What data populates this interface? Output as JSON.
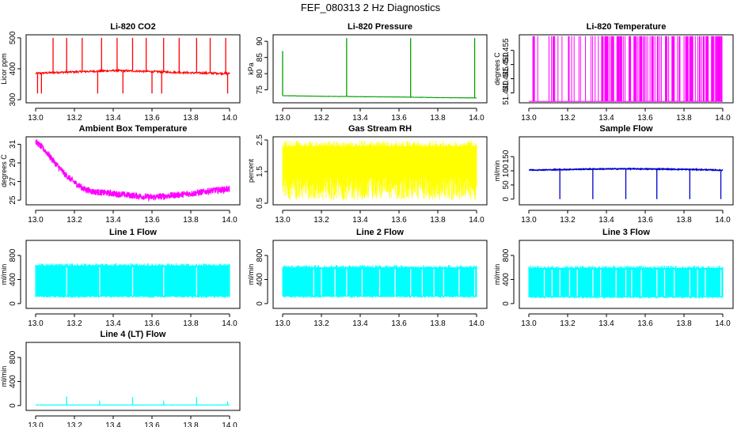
{
  "figure_title": "FEF_080313  2 Hz Diagnostics",
  "chart_data": [
    {
      "id": "co2",
      "type": "line",
      "title": "Li-820 CO2",
      "ylabel": "Licor ppm",
      "color": "#ff0000",
      "xlim": [
        13.0,
        14.0
      ],
      "ylim": [
        290,
        510
      ],
      "yticks": [
        "300",
        "400",
        "500"
      ],
      "ytick_values": [
        300,
        400,
        500
      ],
      "xticks": [
        "13.0",
        "13.2",
        "13.4",
        "13.6",
        "13.8",
        "14.0"
      ],
      "base_points": [
        [
          13.0,
          385
        ],
        [
          13.1,
          388
        ],
        [
          13.2,
          390
        ],
        [
          13.3,
          392
        ],
        [
          13.4,
          394
        ],
        [
          13.5,
          393
        ],
        [
          13.6,
          391
        ],
        [
          13.7,
          389
        ],
        [
          13.8,
          387
        ],
        [
          13.9,
          386
        ],
        [
          13.99,
          385
        ]
      ],
      "spikes_up": [
        13.09,
        13.16,
        13.24,
        13.34,
        13.42,
        13.5,
        13.57,
        13.66,
        13.74,
        13.83,
        13.9,
        13.98
      ],
      "spike_up_value": 500,
      "spikes_down": [
        13.01,
        13.03,
        13.32,
        13.45,
        13.6,
        13.65,
        13.99
      ],
      "spike_down_value": 320
    },
    {
      "id": "pressure",
      "type": "line",
      "title": "Li-820 Pressure",
      "ylabel": "kPa",
      "color": "#00a000",
      "xlim": [
        13.0,
        14.0
      ],
      "ylim": [
        71,
        92
      ],
      "yticks": [
        "75",
        "80",
        "85",
        "90"
      ],
      "ytick_values": [
        75,
        80,
        85,
        90
      ],
      "xticks": [
        "13.0",
        "13.2",
        "13.4",
        "13.6",
        "13.8",
        "14.0"
      ],
      "base_points": [
        [
          13.0,
          73.2
        ],
        [
          13.2,
          73.0
        ],
        [
          13.4,
          72.9
        ],
        [
          13.6,
          72.8
        ],
        [
          13.8,
          72.6
        ],
        [
          14.0,
          72.5
        ]
      ],
      "spikes_up": [
        13.0,
        13.33,
        13.66,
        13.99
      ],
      "spike_up_values": [
        87,
        91,
        91,
        91
      ]
    },
    {
      "id": "temperature",
      "type": "line",
      "title": "Li-820 Temperature",
      "ylabel": "degrees C",
      "color": "#ff00ff",
      "xlim": [
        13.0,
        14.0
      ],
      "ylim": [
        51.4365,
        51.4605
      ],
      "yticks": [
        "51.440",
        "51.445",
        "51.450",
        "51.455"
      ],
      "ytick_values": [
        51.44,
        51.445,
        51.45,
        51.455
      ],
      "xticks": [
        "13.0",
        "13.2",
        "13.4",
        "13.6",
        "13.8",
        "14.0"
      ],
      "base_value": 51.437,
      "high_value": 51.46
    },
    {
      "id": "ambient",
      "type": "line",
      "title": "Ambient Box Temperature",
      "ylabel": "degrees C",
      "color": "#ff00ff",
      "xlim": [
        13.0,
        14.0
      ],
      "ylim": [
        24.5,
        31.8
      ],
      "yticks": [
        "25",
        "27",
        "29",
        "31"
      ],
      "ytick_values": [
        25,
        27,
        29,
        31
      ],
      "xticks": [
        "13.0",
        "13.2",
        "13.4",
        "13.6",
        "13.8",
        "14.0"
      ],
      "base_points": [
        [
          13.0,
          31.3
        ],
        [
          13.05,
          30.3
        ],
        [
          13.1,
          29.0
        ],
        [
          13.15,
          27.8
        ],
        [
          13.2,
          26.9
        ],
        [
          13.25,
          26.2
        ],
        [
          13.3,
          25.9
        ],
        [
          13.4,
          25.7
        ],
        [
          13.5,
          25.5
        ],
        [
          13.6,
          25.3
        ],
        [
          13.7,
          25.5
        ],
        [
          13.8,
          25.7
        ],
        [
          13.9,
          26.0
        ],
        [
          14.0,
          26.2
        ]
      ],
      "noise": 0.35
    },
    {
      "id": "rh",
      "type": "area",
      "title": "Gas Stream RH",
      "ylabel": "percent",
      "color": "#ffff00",
      "xlim": [
        13.0,
        14.0
      ],
      "ylim": [
        0.45,
        2.6
      ],
      "yticks": [
        "0.5",
        "1.5",
        "2.5"
      ],
      "ytick_values": [
        0.5,
        1.5,
        2.5
      ],
      "xticks": [
        "13.0",
        "13.2",
        "13.4",
        "13.6",
        "13.8",
        "14.0"
      ],
      "band_low": 1.3,
      "band_high": 2.3,
      "dip_min": 0.6,
      "peak_max": 2.5
    },
    {
      "id": "sample",
      "type": "line",
      "title": "Sample Flow",
      "ylabel": "ml/min",
      "color": "#0000cc",
      "xlim": [
        13.0,
        14.0
      ],
      "ylim": [
        -20,
        220
      ],
      "yticks": [
        "0",
        "50",
        "100",
        "150"
      ],
      "ytick_values": [
        0,
        50,
        100,
        150
      ],
      "xticks": [
        "13.0",
        "13.2",
        "13.4",
        "13.6",
        "13.8",
        "14.0"
      ],
      "base_points": [
        [
          13.0,
          103
        ],
        [
          13.05,
          103
        ],
        [
          13.15,
          104
        ],
        [
          13.3,
          106
        ],
        [
          13.5,
          107
        ],
        [
          13.7,
          106
        ],
        [
          13.9,
          104
        ],
        [
          13.99,
          102
        ]
      ],
      "spikes_down": [
        13.16,
        13.33,
        13.5,
        13.66,
        13.83,
        13.99
      ],
      "spike_down_value": 0
    },
    {
      "id": "line1",
      "type": "area",
      "title": "Line 1 Flow",
      "ylabel": "ml/min",
      "color": "#00ffff",
      "xlim": [
        13.0,
        14.0
      ],
      "ylim": [
        -80,
        1050
      ],
      "yticks": [
        "0",
        "400",
        "800"
      ],
      "ytick_values": [
        0,
        400,
        800
      ],
      "xticks": [
        "13.0",
        "13.2",
        "13.4",
        "13.6",
        "13.8",
        "14.0"
      ],
      "band_low": 120,
      "band_high": 630,
      "gaps": [
        13.16,
        13.33,
        13.5,
        13.66,
        13.83
      ]
    },
    {
      "id": "line2",
      "type": "area",
      "title": "Line 2 Flow",
      "ylabel": "ml/min",
      "color": "#00ffff",
      "xlim": [
        13.0,
        14.0
      ],
      "ylim": [
        -80,
        1050
      ],
      "yticks": [
        "0",
        "400",
        "800"
      ],
      "ytick_values": [
        0,
        400,
        800
      ],
      "xticks": [
        "13.0",
        "13.2",
        "13.4",
        "13.6",
        "13.8",
        "14.0"
      ],
      "band_low": 120,
      "band_high": 600,
      "gaps": [
        13.16,
        13.2,
        13.27,
        13.33,
        13.41,
        13.5,
        13.58,
        13.66,
        13.72,
        13.78,
        13.83,
        13.91,
        13.99
      ]
    },
    {
      "id": "line3",
      "type": "area",
      "title": "Line 3 Flow",
      "ylabel": "ml/min",
      "color": "#00ffff",
      "xlim": [
        13.0,
        14.0
      ],
      "ylim": [
        -80,
        1050
      ],
      "yticks": [
        "0",
        "400",
        "800"
      ],
      "ytick_values": [
        0,
        400,
        800
      ],
      "xticks": [
        "13.0",
        "13.2",
        "13.4",
        "13.6",
        "13.8",
        "14.0"
      ],
      "band_low": 110,
      "band_high": 590,
      "gaps": [
        13.08,
        13.12,
        13.16,
        13.21,
        13.25,
        13.33,
        13.37,
        13.45,
        13.5,
        13.53,
        13.58,
        13.66,
        13.7,
        13.75,
        13.83,
        13.87,
        13.91,
        13.99
      ]
    },
    {
      "id": "line4",
      "type": "line",
      "title": "Line 4 (LT) Flow",
      "ylabel": "ml/min",
      "color": "#00ffff",
      "xlim": [
        13.0,
        14.0
      ],
      "ylim": [
        -80,
        1050
      ],
      "yticks": [
        "0",
        "400",
        "800"
      ],
      "ytick_values": [
        0,
        400,
        800
      ],
      "xticks": [
        "13.0",
        "13.2",
        "13.4",
        "13.6",
        "13.8",
        "14.0"
      ],
      "base_value": 10,
      "spikes_up": [
        13.16,
        13.33,
        13.5,
        13.66,
        13.83,
        13.99
      ],
      "spike_up_values": [
        150,
        80,
        140,
        80,
        140,
        70
      ]
    }
  ]
}
